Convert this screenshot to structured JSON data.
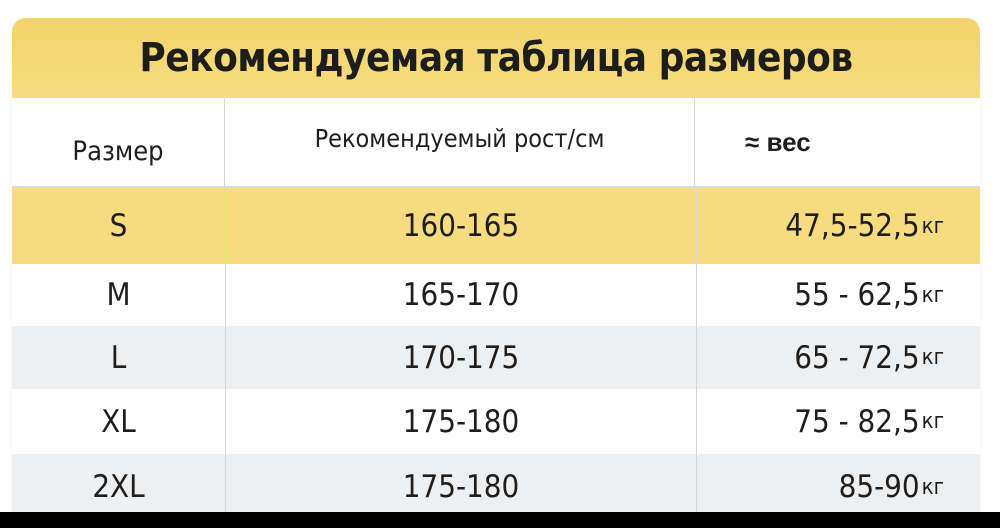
{
  "title": "Рекомендуемая таблица размеров",
  "headers": {
    "size": "Размер",
    "height": "Рекомендуемый рост/см",
    "weight": "≈ вес"
  },
  "rows": [
    {
      "size": "S",
      "height": "160-165",
      "weight": "47,5-52,5",
      "unit": "кг"
    },
    {
      "size": "M",
      "height": "165-170",
      "weight": "55 - 62,5",
      "unit": "кг"
    },
    {
      "size": "L",
      "height": "170-175",
      "weight": "65 - 72,5",
      "unit": "кг"
    },
    {
      "size": "XL",
      "height": "175-180",
      "weight": "75 - 82,5",
      "unit": "кг"
    },
    {
      "size": "2XL",
      "height": "175-180",
      "weight": "85-90",
      "unit": "кг"
    }
  ],
  "colors": {
    "accent": "#f6dc7e",
    "stripe": "#eeeff1"
  }
}
